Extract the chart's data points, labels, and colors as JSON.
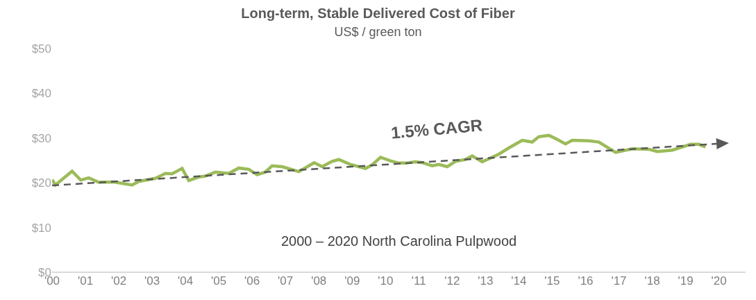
{
  "chart_data": {
    "type": "line",
    "title": "Long-term, Stable Delivered Cost of Fiber",
    "subtitle": "US$ / green ton",
    "annotations": [
      "1.5% CAGR",
      "2000 – 2020 North Carolina Pulpwood"
    ],
    "xlim": [
      2000,
      2020.8
    ],
    "xticks": [
      {
        "value": 2000,
        "label": "'00"
      },
      {
        "value": 2001,
        "label": "'01"
      },
      {
        "value": 2002,
        "label": "'02"
      },
      {
        "value": 2003,
        "label": "'03"
      },
      {
        "value": 2004,
        "label": "'04"
      },
      {
        "value": 2005,
        "label": "'05"
      },
      {
        "value": 2006,
        "label": "'06"
      },
      {
        "value": 2007,
        "label": "'07"
      },
      {
        "value": 2008,
        "label": "'08"
      },
      {
        "value": 2009,
        "label": "'09"
      },
      {
        "value": 2010,
        "label": "'10"
      },
      {
        "value": 2011,
        "label": "'11"
      },
      {
        "value": 2012,
        "label": "'12"
      },
      {
        "value": 2013,
        "label": "'13"
      },
      {
        "value": 2014,
        "label": "'14"
      },
      {
        "value": 2015,
        "label": "'15"
      },
      {
        "value": 2016,
        "label": "'16"
      },
      {
        "value": 2017,
        "label": "'17"
      },
      {
        "value": 2018,
        "label": "'18"
      },
      {
        "value": 2019,
        "label": "'19"
      },
      {
        "value": 2020,
        "label": "'20"
      }
    ],
    "ylim": [
      0,
      50
    ],
    "yticks": [
      {
        "value": 0,
        "label": "$0"
      },
      {
        "value": 10,
        "label": "$10"
      },
      {
        "value": 20,
        "label": "$20"
      },
      {
        "value": 30,
        "label": "$30"
      },
      {
        "value": 40,
        "label": "$40"
      },
      {
        "value": 50,
        "label": "$50"
      }
    ],
    "series": [
      {
        "color": "#9bbb59",
        "line_style": "solid",
        "x": [
          2000.0,
          2000.1,
          2000.6,
          2000.86,
          2001.1,
          2001.4,
          2001.85,
          2002.4,
          2002.6,
          2003.1,
          2003.4,
          2003.6,
          2003.9,
          2004.1,
          2004.4,
          2004.6,
          2004.9,
          2005.3,
          2005.6,
          2005.9,
          2006.15,
          2006.4,
          2006.6,
          2006.9,
          2007.4,
          2007.86,
          2008.1,
          2008.4,
          2008.6,
          2008.95,
          2009.4,
          2009.6,
          2009.85,
          2010.15,
          2010.4,
          2010.6,
          2010.9,
          2011.1,
          2011.4,
          2011.6,
          2011.85,
          2012.1,
          2012.4,
          2012.6,
          2012.9,
          2013.4,
          2013.7,
          2014.1,
          2014.4,
          2014.6,
          2014.9,
          2015.1,
          2015.4,
          2015.6,
          2016.1,
          2016.4,
          2016.9,
          2017.4,
          2017.9,
          2018.15,
          2018.6,
          2019.15,
          2019.4,
          2019.6
        ],
        "values": [
          20.7,
          19.5,
          22.6,
          20.6,
          21.1,
          20.1,
          20.2,
          19.5,
          20.3,
          21.0,
          22.1,
          22.0,
          23.2,
          20.5,
          21.3,
          21.5,
          22.4,
          22.1,
          23.3,
          23.0,
          21.8,
          22.4,
          23.8,
          23.6,
          22.5,
          24.5,
          23.6,
          24.8,
          25.2,
          24.1,
          23.2,
          24.0,
          25.7,
          24.9,
          24.4,
          24.4,
          24.7,
          24.5,
          23.8,
          24.1,
          23.6,
          24.8,
          25.2,
          26.0,
          24.7,
          26.4,
          27.8,
          29.5,
          29.1,
          30.3,
          30.6,
          29.9,
          28.7,
          29.5,
          29.4,
          29.1,
          26.8,
          27.6,
          27.5,
          27.0,
          27.3,
          28.6,
          28.6,
          28.0
        ]
      }
    ]
  }
}
